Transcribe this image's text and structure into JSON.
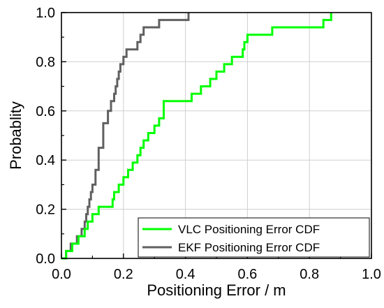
{
  "chart_data": {
    "type": "line",
    "title": "",
    "xlabel": "Positioning Error / m",
    "ylabel": "Probablity",
    "xlim": [
      0.0,
      1.0
    ],
    "ylim": [
      0.0,
      1.0
    ],
    "xticks": [
      "0.0",
      "0.2",
      "0.4",
      "0.6",
      "0.8",
      "1.0"
    ],
    "yticks": [
      "0.0",
      "0.2",
      "0.4",
      "0.6",
      "0.8",
      "1.0"
    ],
    "grid": true,
    "legend_position": "bottom-right",
    "series": [
      {
        "name": "VLC Positioning Error CDF",
        "color": "#00ff00",
        "step": true,
        "x": [
          0.0,
          0.015,
          0.035,
          0.055,
          0.075,
          0.085,
          0.1,
          0.12,
          0.165,
          0.17,
          0.185,
          0.2,
          0.215,
          0.23,
          0.245,
          0.255,
          0.265,
          0.28,
          0.3,
          0.315,
          0.33,
          0.42,
          0.45,
          0.48,
          0.5,
          0.525,
          0.55,
          0.585,
          0.59,
          0.6,
          0.625,
          0.645,
          0.68,
          0.845,
          0.87
        ],
        "y": [
          0.0,
          0.03,
          0.06,
          0.09,
          0.12,
          0.15,
          0.18,
          0.21,
          0.24,
          0.27,
          0.3,
          0.33,
          0.36,
          0.39,
          0.42,
          0.45,
          0.48,
          0.51,
          0.54,
          0.57,
          0.64,
          0.67,
          0.7,
          0.73,
          0.76,
          0.79,
          0.82,
          0.85,
          0.88,
          0.91,
          0.91,
          0.91,
          0.94,
          0.97,
          1.0
        ]
      },
      {
        "name": "EKF Positioning Error CDF",
        "color": "#606060",
        "step": true,
        "x": [
          0.0,
          0.015,
          0.03,
          0.05,
          0.065,
          0.075,
          0.08,
          0.085,
          0.09,
          0.095,
          0.1,
          0.11,
          0.12,
          0.135,
          0.15,
          0.16,
          0.17,
          0.175,
          0.18,
          0.185,
          0.19,
          0.2,
          0.21,
          0.245,
          0.255,
          0.26,
          0.265,
          0.275,
          0.315,
          0.35,
          0.41
        ],
        "y": [
          0.0,
          0.03,
          0.06,
          0.09,
          0.12,
          0.15,
          0.18,
          0.21,
          0.24,
          0.27,
          0.3,
          0.36,
          0.45,
          0.55,
          0.6,
          0.64,
          0.67,
          0.7,
          0.73,
          0.76,
          0.79,
          0.82,
          0.85,
          0.88,
          0.91,
          0.91,
          0.94,
          0.94,
          0.97,
          0.97,
          1.0
        ]
      }
    ]
  }
}
